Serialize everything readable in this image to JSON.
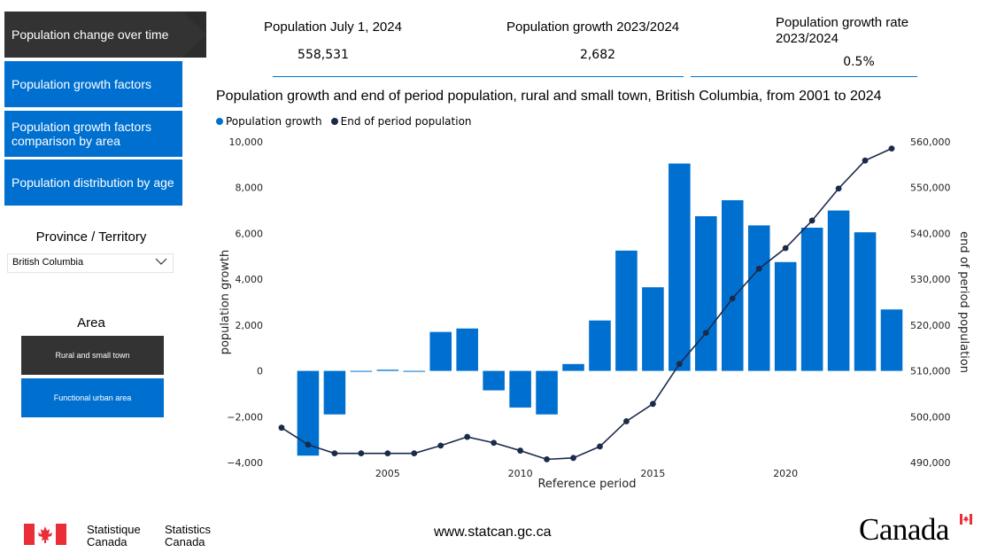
{
  "nav": {
    "items": [
      {
        "label": "Population change over time"
      },
      {
        "label": "Population growth factors"
      },
      {
        "label": "Population growth factors comparison by area"
      },
      {
        "label": "Population distribution by age"
      }
    ]
  },
  "filters": {
    "province_label": "Province / Territory",
    "province_value": "British Columbia",
    "area_label": "Area",
    "area_options": [
      "Rural and small town",
      "Functional urban area"
    ]
  },
  "kpis": [
    {
      "title": "Population July 1, 2024",
      "value": "558,531"
    },
    {
      "title": "Population growth 2023/2024",
      "value": "2,682"
    },
    {
      "title": "Population growth rate 2023/2024",
      "value": "0.5%"
    }
  ],
  "footer": {
    "statistique": "Statistique",
    "canada_fr": "Canada",
    "statistics": "Statistics",
    "canada_en": "Canada",
    "url": "www.statcan.gc.ca",
    "wordmark": "Canada"
  },
  "colors": {
    "bar": "#0070d0",
    "line": "#1b2a4a",
    "active": "#333333"
  },
  "chart_data": {
    "type": "bar",
    "title": "Population growth and end of period population, rural and small town, British Columbia, from 2001 to 2024",
    "xlabel": "Reference period",
    "ylabel": "population growth",
    "y2label": "end of period population",
    "x": [
      2001,
      2002,
      2003,
      2004,
      2005,
      2006,
      2007,
      2008,
      2009,
      2010,
      2011,
      2012,
      2013,
      2014,
      2015,
      2016,
      2017,
      2018,
      2019,
      2020,
      2021,
      2022,
      2023,
      2024
    ],
    "xticks": [
      2005,
      2010,
      2015,
      2020
    ],
    "ylim": [
      -4000,
      10000
    ],
    "yticks": [
      -4000,
      -2000,
      0,
      2000,
      4000,
      6000,
      8000,
      10000
    ],
    "y2lim": [
      490000,
      560000
    ],
    "y2ticks": [
      490000,
      500000,
      510000,
      520000,
      530000,
      540000,
      550000,
      560000
    ],
    "series": [
      {
        "name": "Population growth",
        "kind": "bar",
        "color": "#0070d0",
        "values": [
          null,
          -3700,
          -1900,
          -30,
          50,
          -30,
          1700,
          1850,
          -850,
          -1600,
          -1900,
          300,
          2200,
          5250,
          3650,
          9050,
          6750,
          7450,
          6350,
          4750,
          6250,
          7000,
          6050,
          2682
        ]
      },
      {
        "name": "End of period population",
        "kind": "line",
        "color": "#1b2a4a",
        "values": [
          497600,
          493900,
          492000,
          492000,
          492000,
          492000,
          493700,
          495600,
          494300,
          492600,
          490700,
          491000,
          493500,
          499000,
          502800,
          511500,
          518300,
          525800,
          532300,
          536800,
          542800,
          549800,
          555900,
          558531
        ]
      }
    ]
  }
}
